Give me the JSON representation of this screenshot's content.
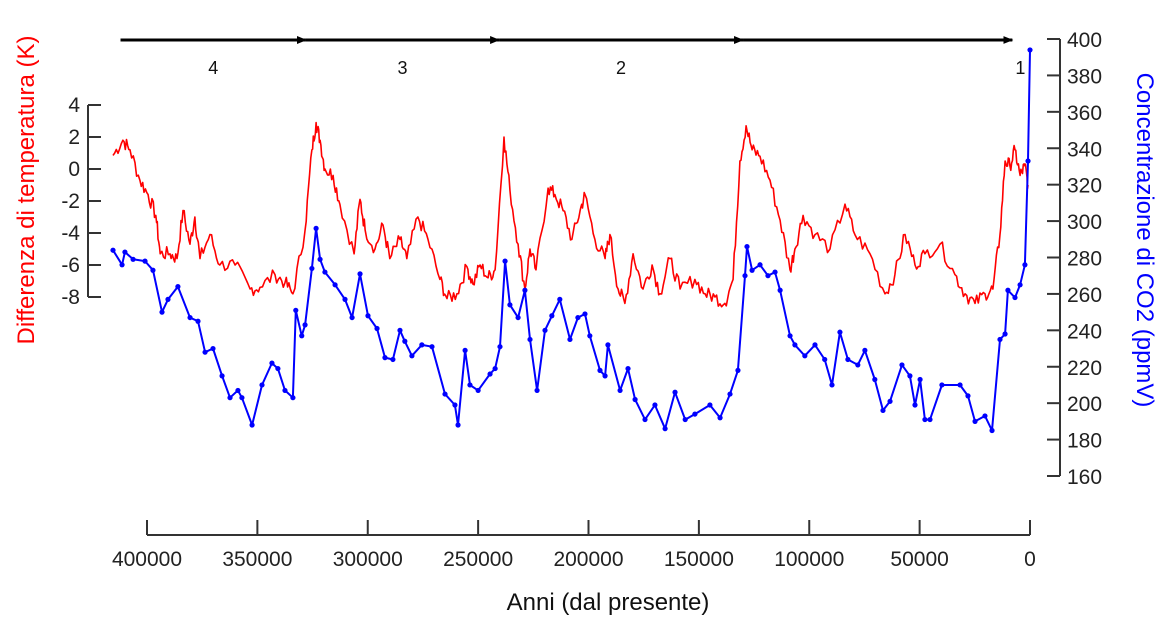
{
  "chart_data": {
    "type": "line",
    "title": "",
    "xlabel": "Anni (dal presente)",
    "ylabel_left": "Differenza di temperatura (K)",
    "ylabel_right": "Concentrazione di CO2 (ppmV)",
    "xlim": [
      400000,
      0
    ],
    "ylim_left": [
      -8,
      4
    ],
    "ylim_right": [
      160,
      400
    ],
    "x_ticks": [
      "400000",
      "350000",
      "300000",
      "250000",
      "200000",
      "150000",
      "100000",
      "50000",
      "0"
    ],
    "y_left_ticks": [
      "4",
      "2",
      "0",
      "-2",
      "-4",
      "-6",
      "-8"
    ],
    "y_right_ticks": [
      "400",
      "380",
      "360",
      "340",
      "320",
      "300",
      "280",
      "260",
      "240",
      "220",
      "200",
      "180",
      "160"
    ],
    "grid": false,
    "colors": {
      "temperature": "#ff0000",
      "co2": "#0000ff",
      "axis": "#333333"
    },
    "periods": [
      {
        "label": "4",
        "from": 412000,
        "to": 328000
      },
      {
        "label": "3",
        "to": 240500,
        "from": 328000
      },
      {
        "label": "2",
        "from": 240500,
        "to": 130000
      },
      {
        "label": "1",
        "from": 130000,
        "to": 8000
      }
    ],
    "series": [
      {
        "name": "Temperatura",
        "axis": "left",
        "x": [
          415400,
          410900,
          407700,
          403200,
          399500,
          396000,
          394000,
          389600,
          386400,
          383700,
          380500,
          378300,
          376000,
          371500,
          367000,
          360100,
          353300,
          348800,
          342000,
          337500,
          333900,
          328400,
          325300,
          323400,
          321600,
          319400,
          315700,
          312600,
          306200,
          303500,
          301200,
          296700,
          293100,
          290000,
          285400,
          282300,
          277300,
          272700,
          267300,
          264100,
          259600,
          255100,
          252300,
          249100,
          245500,
          242300,
          238300,
          235600,
          231900,
          228800,
          226500,
          223800,
          218300,
          215200,
          211500,
          207500,
          203800,
          201600,
          197100,
          192500,
          190300,
          186600,
          183500,
          179800,
          175300,
          171200,
          167600,
          163100,
          158500,
          151800,
          147200,
          142700,
          138200,
          134500,
          131400,
          128600,
          125900,
          122300,
          117800,
          113200,
          108700,
          106500,
          102800,
          97400,
          90600,
          83800,
          79300,
          72500,
          65700,
          61200,
          56600,
          52100,
          47600,
          40800,
          34000,
          29400,
          24900,
          20400,
          16800,
          13600,
          11300,
          9100,
          6800,
          4500,
          2300,
          900
        ],
        "y": [
          0.85,
          1.8,
          1.2,
          -0.7,
          -1.6,
          -2.9,
          -5.3,
          -5.3,
          -5.6,
          -2.6,
          -4.7,
          -3,
          -5.6,
          -4.1,
          -6,
          -6,
          -7.5,
          -7.4,
          -6.6,
          -7.1,
          -7.8,
          -3.8,
          1.2,
          2.9,
          1.8,
          0,
          -0.4,
          -2.2,
          -5.3,
          -1.9,
          -3.8,
          -5,
          -3.5,
          -5.6,
          -4.4,
          -5.6,
          -3,
          -4.4,
          -6.9,
          -8.1,
          -7.8,
          -6.1,
          -7.2,
          -6,
          -6.8,
          -6.3,
          2,
          -1.3,
          -4.7,
          -7.5,
          -5,
          -6.3,
          -1.2,
          -1.6,
          -2.6,
          -4.4,
          -2.6,
          -1.6,
          -4.4,
          -5.6,
          -4.1,
          -7.5,
          -8.4,
          -5.3,
          -7.5,
          -6,
          -7.8,
          -5.6,
          -7.5,
          -6.9,
          -7.8,
          -8,
          -8.4,
          -6.9,
          0.5,
          2.7,
          1.2,
          0.8,
          -0.7,
          -3.2,
          -6.3,
          -5,
          -2.9,
          -4.1,
          -5,
          -2.2,
          -4.1,
          -5.3,
          -7.8,
          -6.6,
          -4.1,
          -6,
          -5.3,
          -4.7,
          -6.6,
          -7.8,
          -8.4,
          -7.8,
          -7.5,
          -4.1,
          0.5,
          0.2,
          1.2,
          -0.4,
          0.2,
          -1.0
        ]
      },
      {
        "name": "CO2",
        "axis": "right",
        "x": [
          415400,
          411300,
          410000,
          406300,
          400900,
          397300,
          393200,
          390500,
          386000,
          380500,
          376900,
          373700,
          370100,
          366000,
          362400,
          358800,
          357000,
          352400,
          347900,
          343400,
          340700,
          337500,
          333900,
          332600,
          329900,
          328400,
          325300,
          323400,
          321600,
          319400,
          314800,
          310300,
          307100,
          303500,
          299900,
          295800,
          292200,
          288600,
          285400,
          283200,
          280000,
          275500,
          270900,
          265000,
          260500,
          259100,
          255900,
          253700,
          250000,
          244600,
          242300,
          240100,
          237800,
          235600,
          231900,
          228800,
          226500,
          223300,
          219700,
          216600,
          213000,
          208400,
          204800,
          201600,
          199400,
          194800,
          192500,
          191200,
          185700,
          182100,
          178900,
          174400,
          169900,
          165300,
          160800,
          156200,
          151800,
          145000,
          140400,
          135900,
          132300,
          129100,
          128200,
          125900,
          122300,
          118700,
          115500,
          113200,
          108700,
          106500,
          102000,
          97400,
          93000,
          89700,
          86100,
          82500,
          78000,
          74800,
          70300,
          66600,
          63400,
          58000,
          54400,
          52100,
          49800,
          47600,
          45300,
          39900,
          31700,
          28100,
          24900,
          20400,
          17200,
          13600,
          11300,
          10000,
          6800,
          4500,
          2300,
          900,
          0
        ],
        "y": [
          284,
          276,
          283,
          279,
          278,
          273,
          250,
          257,
          264,
          247,
          245,
          228,
          230,
          215,
          203,
          207,
          203,
          188,
          210,
          222,
          219,
          207,
          203,
          251,
          237,
          243,
          274,
          296,
          279,
          272,
          265,
          257,
          247,
          271,
          248,
          241,
          225,
          224,
          240,
          234,
          226,
          232,
          231,
          205,
          199,
          188,
          229,
          210,
          207,
          216,
          219,
          231,
          278,
          254,
          247,
          262,
          235,
          207,
          240,
          248,
          257,
          235,
          247,
          249,
          237,
          218,
          215,
          232,
          207,
          219,
          202,
          191,
          199,
          186,
          206,
          191,
          194,
          199,
          192,
          205,
          218,
          270,
          286,
          273,
          276,
          270,
          272,
          262,
          237,
          232,
          226,
          232,
          224,
          210,
          239,
          224,
          221,
          229,
          213,
          196,
          201,
          221,
          215,
          199,
          213,
          191,
          191,
          210,
          210,
          204,
          190,
          193,
          185,
          235,
          238,
          262,
          258,
          265,
          276,
          333,
          394
        ]
      }
    ]
  }
}
